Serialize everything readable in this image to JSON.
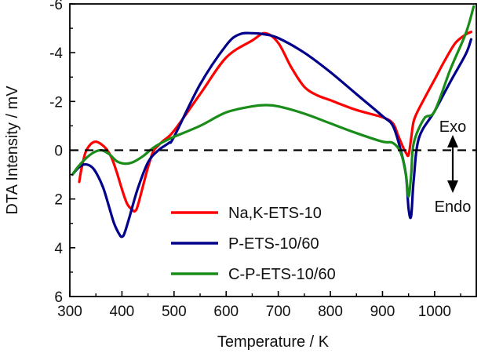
{
  "chart_data": {
    "type": "line",
    "xlabel": "Temperature / K",
    "ylabel": "DTA Intensity / mV",
    "xlim": [
      300,
      1080
    ],
    "ylim": [
      -6,
      6
    ],
    "y_inverted": true,
    "grid": false,
    "legend": "bottom-center",
    "x_ticks": [
      300,
      400,
      500,
      600,
      700,
      800,
      900,
      1000
    ],
    "x_tick_labels": [
      "300",
      "400",
      "500",
      "600",
      "700",
      "800",
      "900",
      "1000"
    ],
    "y_ticks": [
      -6,
      -4,
      -2,
      0,
      2,
      4,
      6
    ],
    "y_tick_labels": [
      "-6",
      "-4",
      "-2",
      "0",
      "2",
      "4",
      "6"
    ],
    "reference_line": {
      "y": 0,
      "style": "dashed",
      "color": "#000000"
    },
    "annotations": {
      "exo": "Exo",
      "endo": "Endo"
    },
    "series": [
      {
        "name": "Na,K-ETS-10",
        "color": "#ff0000",
        "x": [
          318,
          322,
          330,
          340,
          350,
          360,
          370,
          380,
          390,
          400,
          410,
          420,
          425,
          430,
          440,
          450,
          460,
          470,
          480,
          500,
          550,
          600,
          650,
          675,
          700,
          725,
          750,
          775,
          800,
          850,
          900,
          920,
          930,
          940,
          945,
          950,
          955,
          960,
          970,
          1000,
          1020,
          1040,
          1060,
          1070
        ],
        "y": [
          1.3,
          0.8,
          0.1,
          -0.25,
          -0.35,
          -0.25,
          -0.05,
          0.3,
          0.9,
          1.6,
          2.2,
          2.45,
          2.5,
          2.3,
          1.5,
          0.7,
          0.05,
          -0.2,
          -0.4,
          -0.8,
          -2.3,
          -3.8,
          -4.5,
          -4.8,
          -4.4,
          -3.4,
          -2.6,
          -2.25,
          -2.05,
          -1.65,
          -1.35,
          -1.1,
          -0.6,
          -0.1,
          0.1,
          0.2,
          -0.5,
          -1.2,
          -1.7,
          -2.9,
          -3.7,
          -4.4,
          -4.75,
          -4.85
        ]
      },
      {
        "name": "P-ETS-10/60",
        "color": "#00008b",
        "x": [
          305,
          315,
          325,
          335,
          345,
          355,
          365,
          375,
          385,
          395,
          400,
          405,
          415,
          430,
          450,
          470,
          490,
          500,
          550,
          600,
          625,
          650,
          675,
          700,
          750,
          800,
          850,
          900,
          920,
          935,
          945,
          950,
          955,
          960,
          970,
          1000,
          1030,
          1060,
          1070
        ],
        "y": [
          1.0,
          0.75,
          0.6,
          0.6,
          0.75,
          1.1,
          1.6,
          2.3,
          3.0,
          3.45,
          3.55,
          3.4,
          2.7,
          1.6,
          0.5,
          0.0,
          -0.3,
          -0.55,
          -2.7,
          -4.3,
          -4.75,
          -4.8,
          -4.75,
          -4.6,
          -4.0,
          -3.2,
          -2.3,
          -1.4,
          -1.0,
          0.0,
          1.0,
          2.4,
          2.7,
          1.2,
          -0.5,
          -1.6,
          -2.8,
          -3.95,
          -4.55
        ]
      },
      {
        "name": "C-P-ETS-10/60",
        "color": "#1a8c1a",
        "x": [
          305,
          315,
          330,
          345,
          360,
          375,
          390,
          405,
          420,
          440,
          460,
          480,
          500,
          550,
          600,
          650,
          675,
          700,
          750,
          800,
          850,
          900,
          920,
          935,
          945,
          950,
          955,
          960,
          980,
          1000,
          1030,
          1060,
          1075
        ],
        "y": [
          1.0,
          0.7,
          0.35,
          0.1,
          0.0,
          0.15,
          0.45,
          0.55,
          0.5,
          0.25,
          -0.1,
          -0.35,
          -0.55,
          -1.0,
          -1.55,
          -1.8,
          -1.85,
          -1.8,
          -1.5,
          -1.1,
          -0.7,
          -0.35,
          -0.3,
          0.1,
          1.0,
          1.9,
          1.0,
          -0.3,
          -1.3,
          -1.6,
          -3.3,
          -4.8,
          -5.9
        ]
      }
    ]
  }
}
